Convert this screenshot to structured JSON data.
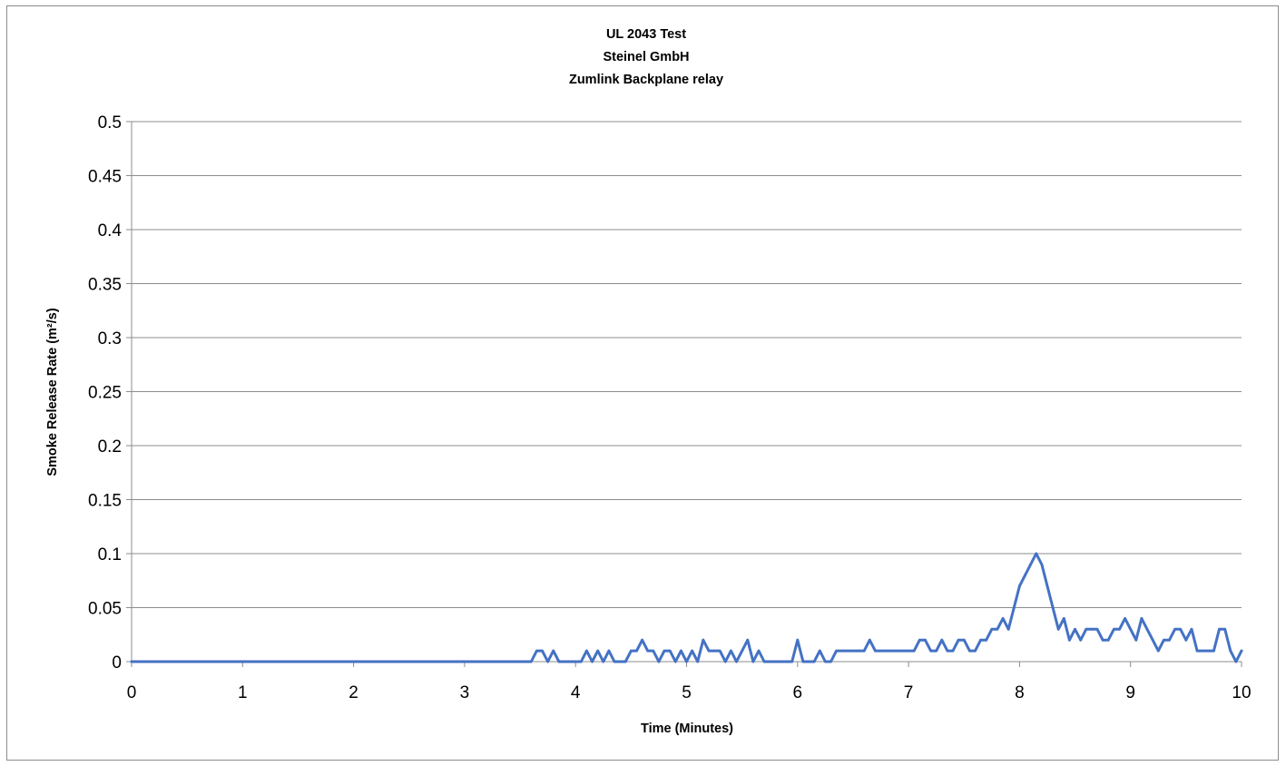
{
  "chart_data": {
    "type": "line",
    "title": [
      "UL 2043 Test",
      "Steinel GmbH",
      "Zumlink Backplane relay"
    ],
    "xlabel": "Time (Minutes)",
    "ylabel": "Smoke Release Rate (m²/s)",
    "xlim": [
      0,
      10
    ],
    "ylim": [
      0,
      0.5
    ],
    "x_ticks": [
      "0",
      "1",
      "2",
      "3",
      "4",
      "5",
      "6",
      "7",
      "8",
      "9",
      "10"
    ],
    "y_ticks": [
      "0",
      "0.05",
      "0.1",
      "0.15",
      "0.2",
      "0.25",
      "0.3",
      "0.35",
      "0.4",
      "0.45",
      "0.5"
    ],
    "grid": true,
    "legend": "none",
    "series_color": "#4472C4",
    "series": [
      {
        "x": [
          0,
          3.6,
          3.65,
          3.7,
          3.75,
          3.8,
          3.85,
          4.05,
          4.1,
          4.15,
          4.2,
          4.25,
          4.3,
          4.35,
          4.45,
          4.5,
          4.55,
          4.6,
          4.65,
          4.7,
          4.75,
          4.8,
          4.85,
          4.9,
          4.95,
          5.0,
          5.05,
          5.1,
          5.15,
          5.2,
          5.25,
          5.3,
          5.35,
          5.4,
          5.45,
          5.5,
          5.55,
          5.6,
          5.65,
          5.7,
          5.8,
          5.95,
          6.0,
          6.05,
          6.15,
          6.2,
          6.25,
          6.3,
          6.35,
          6.6,
          6.65,
          6.7,
          7.05,
          7.1,
          7.15,
          7.2,
          7.25,
          7.3,
          7.35,
          7.4,
          7.45,
          7.5,
          7.55,
          7.6,
          7.65,
          7.7,
          7.75,
          7.8,
          7.85,
          7.9,
          7.95,
          8.0,
          8.05,
          8.1,
          8.15,
          8.2,
          8.25,
          8.3,
          8.35,
          8.4,
          8.45,
          8.5,
          8.55,
          8.6,
          8.65,
          8.7,
          8.75,
          8.8,
          8.85,
          8.9,
          8.95,
          9.0,
          9.05,
          9.1,
          9.15,
          9.2,
          9.25,
          9.3,
          9.35,
          9.4,
          9.45,
          9.5,
          9.55,
          9.6,
          9.65,
          9.75,
          9.8,
          9.85,
          9.9,
          9.95,
          10.0
        ],
        "y": [
          0,
          0,
          0.01,
          0.01,
          0,
          0.01,
          0,
          0,
          0.01,
          0,
          0.01,
          0,
          0.01,
          0,
          0,
          0.01,
          0.01,
          0.02,
          0.01,
          0.01,
          0,
          0.01,
          0.01,
          0,
          0.01,
          0,
          0.01,
          0,
          0.02,
          0.01,
          0.01,
          0.01,
          0,
          0.01,
          0,
          0.01,
          0.02,
          0,
          0.01,
          0,
          0,
          0,
          0.02,
          0,
          0,
          0.01,
          0,
          0,
          0.01,
          0.01,
          0.02,
          0.01,
          0.01,
          0.02,
          0.02,
          0.01,
          0.01,
          0.02,
          0.01,
          0.01,
          0.02,
          0.02,
          0.01,
          0.01,
          0.02,
          0.02,
          0.03,
          0.03,
          0.04,
          0.03,
          0.05,
          0.07,
          0.08,
          0.09,
          0.1,
          0.09,
          0.07,
          0.05,
          0.03,
          0.04,
          0.02,
          0.03,
          0.02,
          0.03,
          0.03,
          0.03,
          0.02,
          0.02,
          0.03,
          0.03,
          0.04,
          0.03,
          0.02,
          0.04,
          0.03,
          0.02,
          0.01,
          0.02,
          0.02,
          0.03,
          0.03,
          0.02,
          0.03,
          0.01,
          0.01,
          0.01,
          0.03,
          0.03,
          0.01,
          0,
          0.01
        ]
      }
    ]
  }
}
